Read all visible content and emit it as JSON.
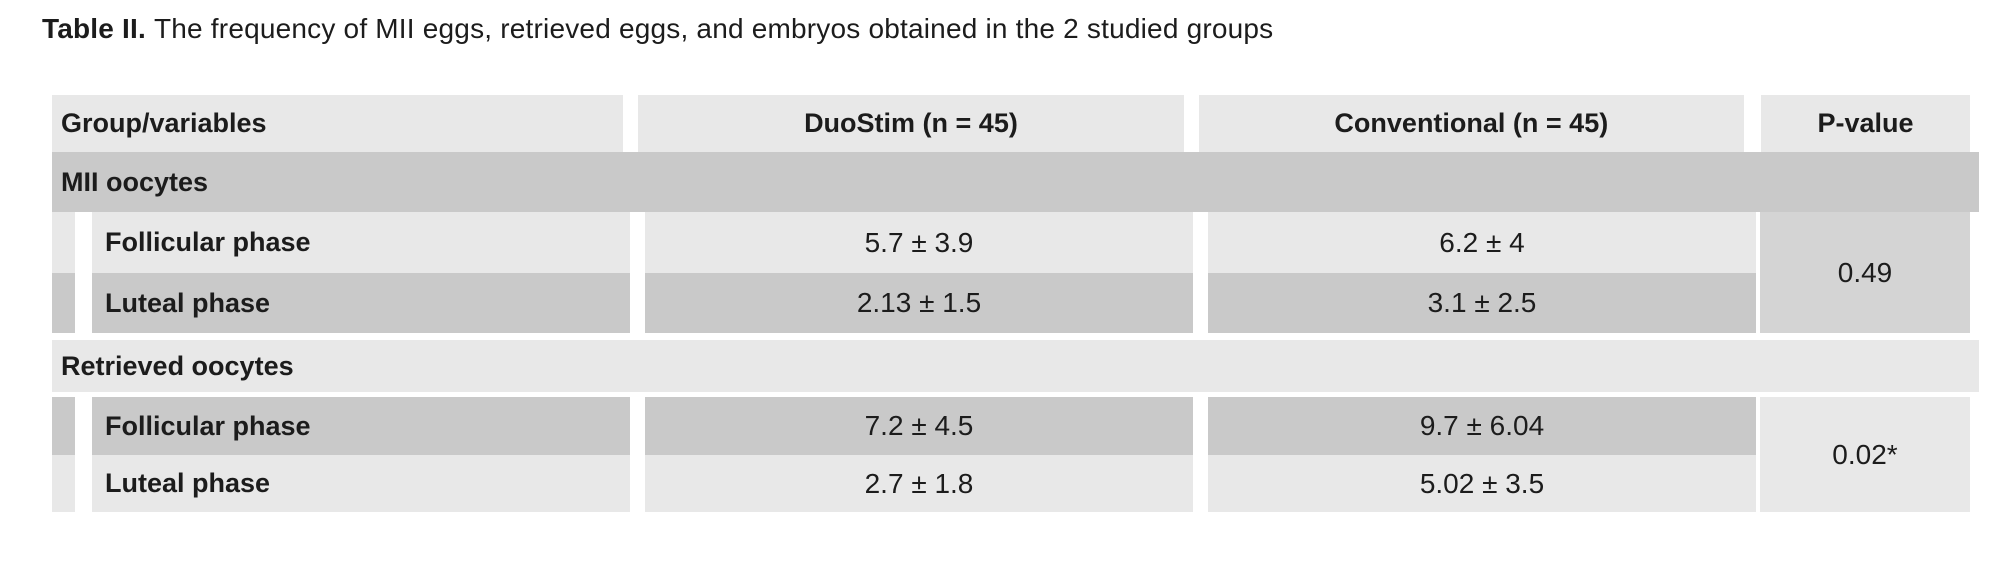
{
  "title": {
    "label": "Table II.",
    "text": "The frequency of MII eggs, retrieved eggs, and embryos obtained in the 2 studied groups"
  },
  "colors": {
    "light": "#e8e8e8",
    "dark": "#c9c9c9",
    "mid": "#d4d4d4",
    "text": "#1c1c1c",
    "page_bg": "#ffffff"
  },
  "table": {
    "columns": [
      "Group/variables",
      "DuoStim (n = 45)",
      "Conventional (n = 45)",
      "P-value"
    ],
    "sections": [
      {
        "label": "MII oocytes",
        "rows": [
          {
            "label": "Follicular phase",
            "duostim": "5.7 ± 3.9",
            "conventional": "6.2 ± 4"
          },
          {
            "label": "Luteal phase",
            "duostim": "2.13 ± 1.5",
            "conventional": "3.1 ± 2.5"
          }
        ],
        "p_value": "0.49"
      },
      {
        "label": "Retrieved oocytes",
        "rows": [
          {
            "label": "Follicular phase",
            "duostim": "7.2 ± 4.5",
            "conventional": "9.7 ± 6.04"
          },
          {
            "label": "Luteal phase",
            "duostim": "2.7 ± 1.8",
            "conventional": "5.02 ± 3.5"
          }
        ],
        "p_value": "0.02*"
      }
    ]
  }
}
